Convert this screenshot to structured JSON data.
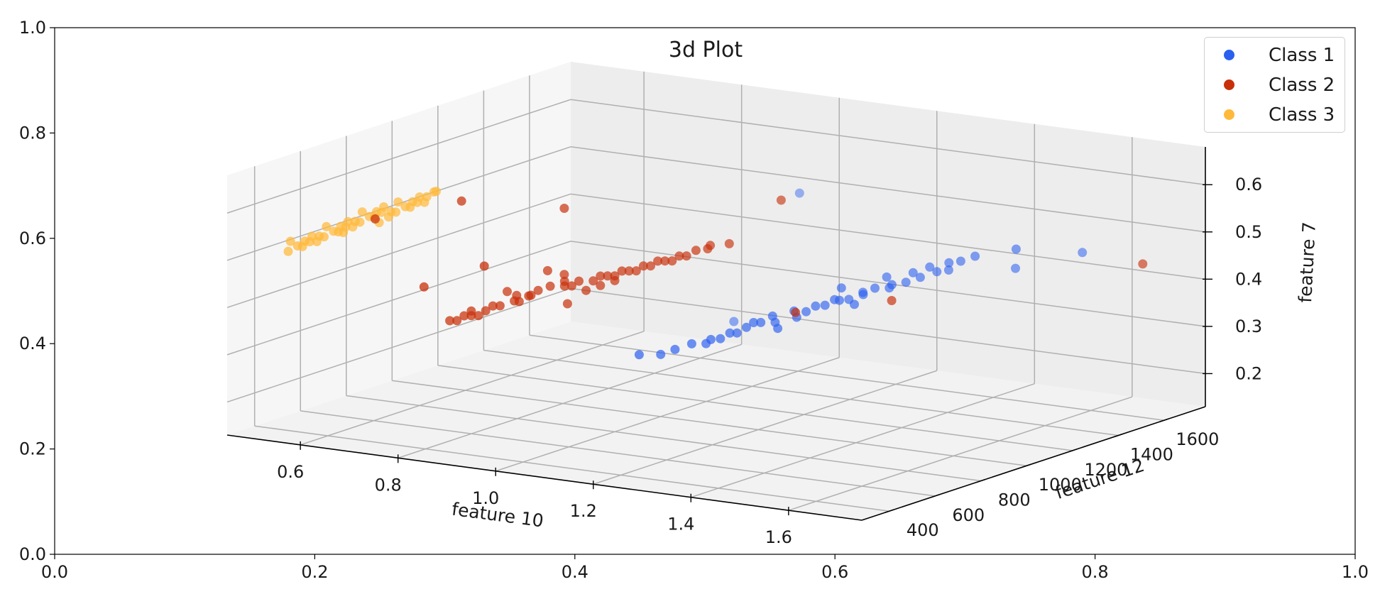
{
  "chart_data": {
    "type": "scatter",
    "title": "3d Plot",
    "projection": "3d",
    "grid": true,
    "legend_placement": "top-right",
    "outer_axes": {
      "x_ticks": [
        "0.0",
        "0.2",
        "0.4",
        "0.6",
        "0.8",
        "1.0"
      ],
      "y_ticks": [
        "0.0",
        "0.2",
        "0.4",
        "0.6",
        "0.8",
        "1.0"
      ],
      "xlim": [
        0,
        1
      ],
      "ylim": [
        0,
        1
      ]
    },
    "axes3d": {
      "xlabel": "feature 10",
      "ylabel": "feature 12",
      "zlabel": "feature 7",
      "xlim": [
        0.45,
        1.75
      ],
      "ylim": [
        280,
        1780
      ],
      "zlim": [
        0.13,
        0.68
      ],
      "x_ticks": [
        "0.6",
        "0.8",
        "1.0",
        "1.2",
        "1.4",
        "1.6"
      ],
      "y_ticks": [
        "400",
        "600",
        "800",
        "1000",
        "1200",
        "1400",
        "1600"
      ],
      "z_ticks": [
        "0.2",
        "0.3",
        "0.4",
        "0.5",
        "0.6"
      ]
    },
    "series": [
      {
        "name": "Class 1",
        "color": "#2b5ff0",
        "points": [
          [
            1.25,
            1050,
            0.38
          ],
          [
            1.3,
            1150,
            0.42
          ],
          [
            1.35,
            1100,
            0.4
          ],
          [
            1.2,
            980,
            0.36
          ],
          [
            1.15,
            900,
            0.33
          ],
          [
            1.4,
            1250,
            0.45
          ],
          [
            1.45,
            1300,
            0.47
          ],
          [
            1.38,
            1200,
            0.43
          ],
          [
            1.1,
            850,
            0.31
          ],
          [
            1.22,
            1020,
            0.37
          ],
          [
            1.28,
            1080,
            0.39
          ],
          [
            1.33,
            1180,
            0.41
          ],
          [
            1.18,
            950,
            0.34
          ],
          [
            1.42,
            1280,
            0.46
          ],
          [
            1.05,
            800,
            0.3
          ],
          [
            1.36,
            1220,
            0.44
          ],
          [
            1.24,
            1000,
            0.35
          ],
          [
            1.31,
            1120,
            0.4
          ],
          [
            1.48,
            1350,
            0.48
          ],
          [
            1.12,
            880,
            0.32
          ],
          [
            1.27,
            1060,
            0.38
          ],
          [
            1.39,
            1240,
            0.43
          ],
          [
            1.21,
            990,
            0.36
          ],
          [
            1.34,
            1160,
            0.41
          ],
          [
            1.16,
            920,
            0.33
          ],
          [
            1.44,
            1320,
            0.45
          ],
          [
            1.26,
            1040,
            0.37
          ],
          [
            1.32,
            1140,
            0.4
          ],
          [
            1.08,
            830,
            0.3
          ],
          [
            1.41,
            1260,
            0.44
          ],
          [
            1.19,
            970,
            0.35
          ],
          [
            1.29,
            1100,
            0.39
          ],
          [
            1.37,
            1210,
            0.42
          ],
          [
            1.14,
            900,
            0.32
          ],
          [
            1.46,
            1330,
            0.47
          ],
          [
            1.23,
            1010,
            0.36
          ],
          [
            1.35,
            1190,
            0.42
          ],
          [
            1.17,
            940,
            0.34
          ],
          [
            1.3,
            1120,
            0.4
          ],
          [
            1.43,
            1290,
            0.45
          ],
          [
            1.53,
            1420,
            0.45
          ],
          [
            1.62,
            1520,
            0.48
          ],
          [
            1.05,
            1500,
            0.53
          ],
          [
            1.55,
            1380,
            0.5
          ],
          [
            1.0,
            1320,
            0.28
          ]
        ]
      },
      {
        "name": "Class 2",
        "color": "#c8300a",
        "points": [
          [
            0.85,
            650,
            0.43
          ],
          [
            0.9,
            720,
            0.47
          ],
          [
            0.95,
            700,
            0.41
          ],
          [
            1.0,
            800,
            0.45
          ],
          [
            0.8,
            600,
            0.39
          ],
          [
            1.05,
            850,
            0.48
          ],
          [
            0.88,
            680,
            0.42
          ],
          [
            0.92,
            750,
            0.46
          ],
          [
            1.1,
            900,
            0.5
          ],
          [
            0.78,
            580,
            0.37
          ],
          [
            0.98,
            780,
            0.44
          ],
          [
            1.02,
            820,
            0.47
          ],
          [
            0.83,
            630,
            0.4
          ],
          [
            0.96,
            760,
            0.43
          ],
          [
            1.08,
            880,
            0.49
          ],
          [
            0.87,
            660,
            0.41
          ],
          [
            0.93,
            730,
            0.45
          ],
          [
            1.12,
            950,
            0.51
          ],
          [
            0.81,
            610,
            0.38
          ],
          [
            0.99,
            790,
            0.46
          ],
          [
            1.04,
            840,
            0.48
          ],
          [
            0.86,
            670,
            0.42
          ],
          [
            0.94,
            740,
            0.44
          ],
          [
            1.15,
            980,
            0.52
          ],
          [
            0.79,
            590,
            0.38
          ],
          [
            1.01,
            810,
            0.47
          ],
          [
            0.89,
            700,
            0.43
          ],
          [
            0.97,
            770,
            0.45
          ],
          [
            1.06,
            860,
            0.49
          ],
          [
            0.84,
            640,
            0.4
          ],
          [
            0.91,
            710,
            0.44
          ],
          [
            1.09,
            890,
            0.5
          ],
          [
            0.82,
            620,
            0.39
          ],
          [
            1.03,
            830,
            0.47
          ],
          [
            0.88,
            690,
            0.42
          ],
          [
            0.95,
            750,
            0.45
          ],
          [
            1.11,
            920,
            0.51
          ],
          [
            0.77,
            570,
            0.37
          ],
          [
            1.0,
            800,
            0.46
          ],
          [
            0.86,
            660,
            0.41
          ],
          [
            0.93,
            730,
            0.44
          ],
          [
            1.07,
            870,
            0.49
          ],
          [
            0.8,
            600,
            0.38
          ],
          [
            0.98,
            780,
            0.46
          ],
          [
            1.13,
            940,
            0.52
          ],
          [
            0.65,
            500,
            0.58
          ],
          [
            0.78,
            600,
            0.62
          ],
          [
            0.92,
            750,
            0.6
          ],
          [
            1.2,
            1100,
            0.6
          ],
          [
            1.8,
            1400,
            0.5
          ],
          [
            0.75,
            500,
            0.45
          ],
          [
            0.85,
            550,
            0.5
          ],
          [
            1.3,
            950,
            0.4
          ],
          [
            1.45,
            1050,
            0.43
          ]
        ]
      },
      {
        "name": "Class 3",
        "color": "#ffb93a",
        "points": [
          [
            0.55,
            500,
            0.55
          ],
          [
            0.6,
            550,
            0.58
          ],
          [
            0.65,
            600,
            0.6
          ],
          [
            0.5,
            450,
            0.52
          ],
          [
            0.7,
            650,
            0.62
          ],
          [
            0.58,
            530,
            0.56
          ],
          [
            0.63,
            580,
            0.59
          ],
          [
            0.53,
            480,
            0.53
          ],
          [
            0.68,
            630,
            0.61
          ],
          [
            0.57,
            520,
            0.55
          ],
          [
            0.62,
            570,
            0.58
          ],
          [
            0.52,
            470,
            0.52
          ],
          [
            0.67,
            620,
            0.6
          ],
          [
            0.56,
            510,
            0.54
          ],
          [
            0.61,
            560,
            0.57
          ],
          [
            0.51,
            460,
            0.51
          ],
          [
            0.66,
            610,
            0.59
          ],
          [
            0.59,
            540,
            0.56
          ],
          [
            0.64,
            590,
            0.58
          ],
          [
            0.54,
            490,
            0.53
          ],
          [
            0.69,
            640,
            0.61
          ],
          [
            0.58,
            520,
            0.55
          ],
          [
            0.63,
            570,
            0.58
          ],
          [
            0.53,
            470,
            0.52
          ],
          [
            0.68,
            620,
            0.6
          ],
          [
            0.57,
            510,
            0.54
          ],
          [
            0.62,
            560,
            0.57
          ],
          [
            0.52,
            460,
            0.51
          ],
          [
            0.67,
            610,
            0.59
          ],
          [
            0.6,
            540,
            0.56
          ],
          [
            0.55,
            490,
            0.53
          ],
          [
            0.65,
            590,
            0.58
          ],
          [
            0.5,
            440,
            0.5
          ],
          [
            0.7,
            660,
            0.62
          ],
          [
            0.59,
            530,
            0.55
          ],
          [
            0.64,
            580,
            0.57
          ],
          [
            0.54,
            480,
            0.52
          ],
          [
            0.69,
            630,
            0.6
          ],
          [
            0.58,
            510,
            0.54
          ],
          [
            0.63,
            560,
            0.56
          ]
        ]
      }
    ]
  }
}
